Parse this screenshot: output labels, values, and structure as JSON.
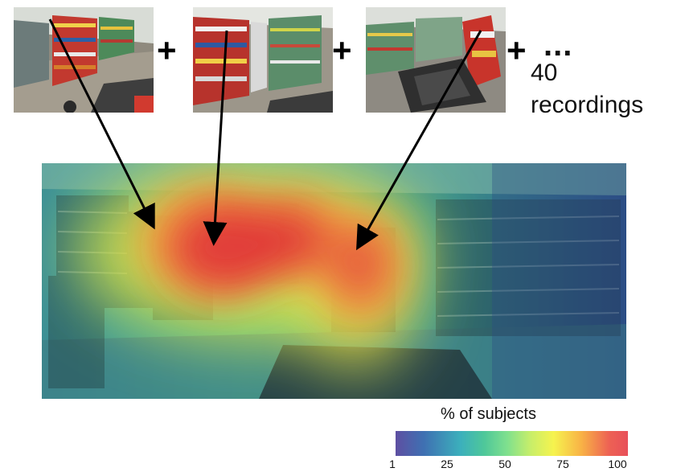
{
  "operators": {
    "plus": "+",
    "ellipsis": "..."
  },
  "recordings": {
    "count": "40",
    "label": "recordings"
  },
  "legend": {
    "title": "% of subjects",
    "ticks": [
      "1",
      "25",
      "50",
      "75",
      "100"
    ],
    "min": 1,
    "max": 100,
    "colormap": [
      "#5e4fa2",
      "#3cb0bc",
      "#7fe08e",
      "#f6f34e",
      "#ed6154"
    ]
  },
  "heatmap": {
    "hotspot_color": "#e23a3a",
    "background_color": "#2c4a84"
  }
}
